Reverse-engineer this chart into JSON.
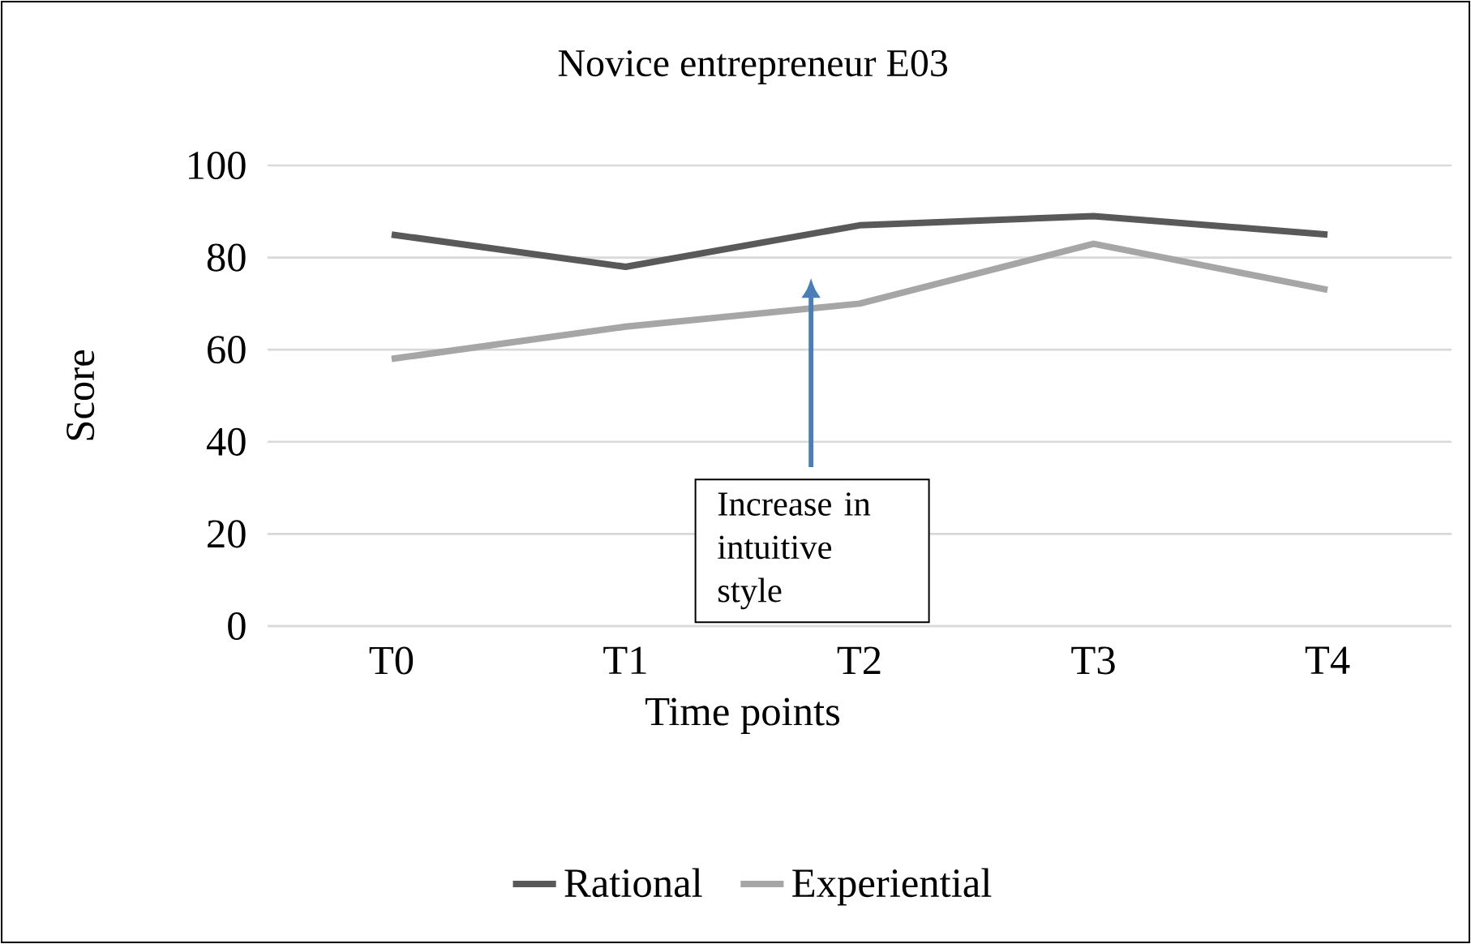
{
  "chart_data": {
    "type": "line",
    "title": "Novice entrepreneur E03",
    "xlabel": "Time points",
    "ylabel": "Score",
    "categories": [
      "T0",
      "T1",
      "T2",
      "T3",
      "T4"
    ],
    "series": [
      {
        "name": "Rational",
        "color": "#595959",
        "values": [
          85,
          78,
          87,
          89,
          85
        ]
      },
      {
        "name": "Experiential",
        "color": "#a6a6a6",
        "values": [
          58,
          65,
          70,
          83,
          73
        ]
      }
    ],
    "ylim": [
      0,
      100
    ],
    "yticks": [
      0,
      20,
      40,
      60,
      80,
      100
    ],
    "grid": "y",
    "legend": "bottom",
    "marker": "none",
    "line_style": "solid",
    "annotations": [
      "Increase in intuitive style"
    ]
  }
}
